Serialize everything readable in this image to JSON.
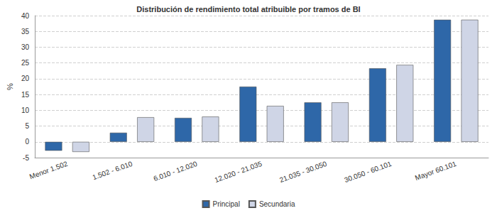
{
  "chart_data": {
    "type": "bar",
    "title": "Distribución de rendimiento total atribuible por tramos de BI",
    "y_label": "%",
    "categories": [
      "Menor 1.502",
      "1.502 - 6.010",
      "6.010 - 12.020",
      "12.020 - 21.035",
      "21.035 - 30.050",
      "30.050 - 60.101",
      "Mayor 60.101"
    ],
    "series": [
      {
        "name": "Principal",
        "color": "#2e67a8",
        "values": [
          -2.8,
          2.9,
          7.6,
          17.5,
          12.5,
          23.3,
          38.7
        ]
      },
      {
        "name": "Secundaria",
        "color": "#cfd5e6",
        "values": [
          -3.2,
          7.8,
          8.0,
          11.4,
          12.5,
          24.4,
          38.7
        ]
      }
    ],
    "ylim": [
      -5,
      40
    ],
    "yticks": [
      -5,
      0,
      5,
      10,
      15,
      20,
      25,
      30,
      35,
      40
    ],
    "grid": true,
    "legend": "bottom"
  }
}
